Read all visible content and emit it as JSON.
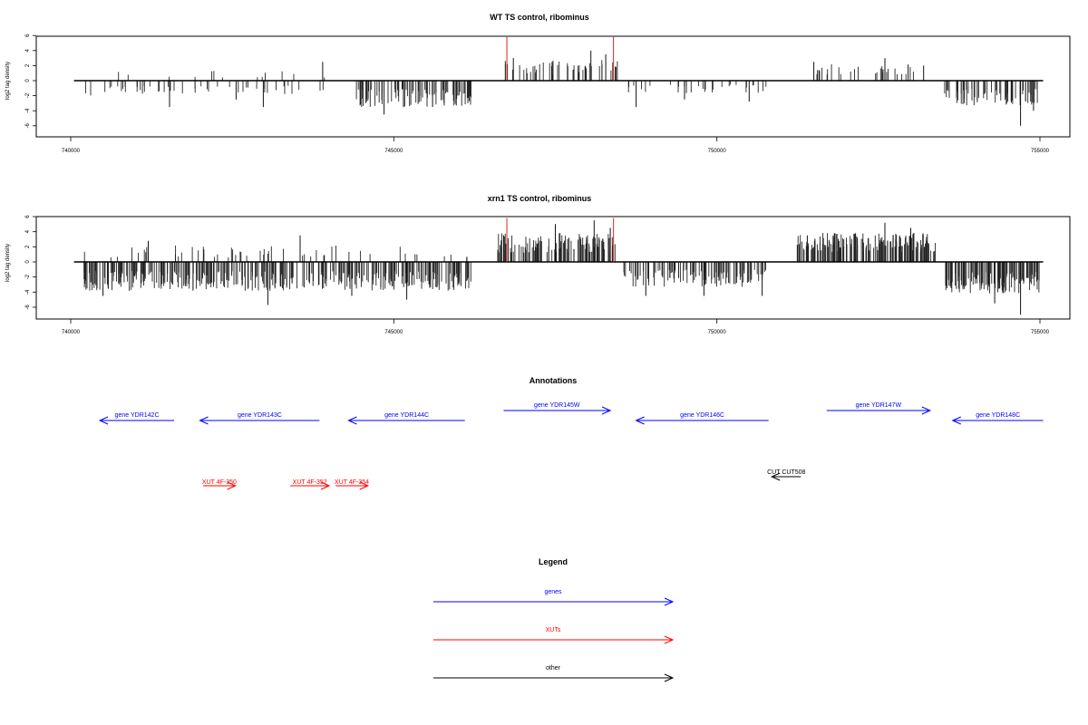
{
  "chart_data": [
    {
      "type": "bar",
      "title": "WT TS control, ribominus",
      "ylabel": "log2 tag density",
      "xlim": [
        740000,
        755000
      ],
      "ylim": [
        -6,
        6
      ],
      "x_ticks": [
        "740000",
        "745000",
        "750000",
        "755000"
      ],
      "y_ticks": [
        "6",
        "4",
        "2",
        "0",
        "-2",
        "-4",
        "-6"
      ],
      "baseline": {
        "from": 740050,
        "to": 755050
      },
      "segments": [
        {
          "from": 740200,
          "to": 743950,
          "density": 0.18,
          "sign": "neg",
          "amp": 1.8,
          "pos_density": 0.05,
          "pos_amp": 1.2,
          "peaks": [
            [
              741530,
              -3.5
            ],
            [
              742560,
              -2.5
            ],
            [
              742980,
              -3.5
            ],
            [
              743900,
              2.5
            ]
          ]
        },
        {
          "from": 744400,
          "to": 746200,
          "density": 0.7,
          "sign": "neg",
          "amp": 3.2,
          "peaks": [
            [
              744850,
              -4.5
            ],
            [
              745150,
              -3.5
            ],
            [
              745600,
              -3.5
            ]
          ]
        },
        {
          "from": 746700,
          "to": 748500,
          "density": 0.35,
          "sign": "pos",
          "amp": 2.5,
          "peaks": [
            [
              746850,
              3.0
            ],
            [
              747450,
              2.5
            ],
            [
              748050,
              4.0
            ],
            [
              748280,
              3.5
            ]
          ]
        },
        {
          "from": 748600,
          "to": 750800,
          "density": 0.2,
          "sign": "neg",
          "amp": 1.5,
          "peaks": [
            [
              748750,
              -3.5
            ],
            [
              749500,
              -2.5
            ],
            [
              750500,
              -2.8
            ]
          ]
        },
        {
          "from": 751500,
          "to": 753200,
          "density": 0.25,
          "sign": "pos",
          "amp": 2.0,
          "peaks": [
            [
              751500,
              2.5
            ],
            [
              752600,
              3.0
            ],
            [
              753200,
              2.0
            ]
          ]
        },
        {
          "from": 753500,
          "to": 755000,
          "density": 0.6,
          "sign": "neg",
          "amp": 3.0,
          "peaks": [
            [
              754700,
              -6.0
            ],
            [
              754900,
              -4.0
            ]
          ]
        }
      ],
      "highlight_lines": [
        {
          "x": 746750,
          "y": 5.8,
          "color": "#d62728"
        },
        {
          "x": 748400,
          "y": 5.8,
          "color": "#d62728"
        }
      ]
    },
    {
      "type": "bar",
      "title": "xrn1 TS control, ribominus",
      "ylabel": "log2 tag density",
      "xlim": [
        740000,
        755000
      ],
      "ylim": [
        -6,
        6
      ],
      "x_ticks": [
        "740000",
        "745000",
        "750000",
        "755000"
      ],
      "y_ticks": [
        "6",
        "4",
        "2",
        "0",
        "-2",
        "-4",
        "-6"
      ],
      "baseline": {
        "from": 740050,
        "to": 755050
      },
      "segments": [
        {
          "from": 740200,
          "to": 746200,
          "density": 0.9,
          "sign": "neg",
          "amp": 3.5,
          "pos_density": 0.12,
          "pos_amp": 2.0,
          "peaks": [
            [
              740500,
              -4.5
            ],
            [
              741200,
              2.8
            ],
            [
              743050,
              -5.7
            ],
            [
              743550,
              3.5
            ],
            [
              744350,
              -4.5
            ],
            [
              745200,
              -5.0
            ]
          ]
        },
        {
          "from": 746600,
          "to": 748500,
          "density": 0.9,
          "sign": "pos",
          "amp": 3.5,
          "peaks": [
            [
              746700,
              3.5
            ],
            [
              747500,
              5.0
            ],
            [
              748100,
              5.5
            ],
            [
              748350,
              4.5
            ]
          ]
        },
        {
          "from": 748550,
          "to": 750800,
          "density": 0.7,
          "sign": "neg",
          "amp": 3.0,
          "peaks": [
            [
              748900,
              -4.5
            ],
            [
              749800,
              -4.5
            ],
            [
              750700,
              -4.5
            ]
          ]
        },
        {
          "from": 751200,
          "to": 753400,
          "density": 1.2,
          "sign": "pos",
          "amp": 3.5,
          "peaks": [
            [
              751400,
              3.5
            ],
            [
              752600,
              5.2
            ],
            [
              753000,
              4.5
            ]
          ]
        },
        {
          "from": 753500,
          "to": 755000,
          "density": 1.2,
          "sign": "neg",
          "amp": 3.8,
          "peaks": [
            [
              754700,
              -7.0
            ],
            [
              754300,
              -5.5
            ]
          ]
        }
      ],
      "highlight_lines": [
        {
          "x": 746750,
          "y": 5.8,
          "color": "#d62728"
        },
        {
          "x": 748400,
          "y": 5.8,
          "color": "#d62728"
        }
      ]
    }
  ],
  "annotations": {
    "title": "Annotations",
    "features": [
      {
        "label": "gene YDR142C",
        "kind": "gene",
        "strand": "-",
        "start": 740450,
        "end": 741600
      },
      {
        "label": "gene YDR143C",
        "kind": "gene",
        "strand": "-",
        "start": 742000,
        "end": 743850
      },
      {
        "label": "gene YDR144C",
        "kind": "gene",
        "strand": "-",
        "start": 744300,
        "end": 746100
      },
      {
        "label": "gene YDR145W",
        "kind": "gene",
        "strand": "+",
        "start": 746700,
        "end": 748350
      },
      {
        "label": "gene YDR146C",
        "kind": "gene",
        "strand": "-",
        "start": 748750,
        "end": 750800
      },
      {
        "label": "gene YDR147W",
        "kind": "gene",
        "strand": "+",
        "start": 751700,
        "end": 753300
      },
      {
        "label": "gene YDR148C",
        "kind": "gene",
        "strand": "-",
        "start": 753650,
        "end": 755050
      },
      {
        "label": "XUT 4F-350",
        "kind": "XUT",
        "strand": "+",
        "start": 742050,
        "end": 742550
      },
      {
        "label": "XUT 4F-352",
        "kind": "XUT",
        "strand": "+",
        "start": 743400,
        "end": 744000
      },
      {
        "label": "XUT 4F-354",
        "kind": "XUT",
        "strand": "+",
        "start": 744100,
        "end": 744600
      },
      {
        "label": "CUT CUT508",
        "kind": "other",
        "strand": "-",
        "start": 750850,
        "end": 751300
      }
    ]
  },
  "legend": {
    "title": "Legend",
    "items": [
      {
        "label": "genes",
        "color": "#0000ff"
      },
      {
        "label": "XUTs",
        "color": "#ff0000"
      },
      {
        "label": "other",
        "color": "#000000"
      }
    ]
  }
}
